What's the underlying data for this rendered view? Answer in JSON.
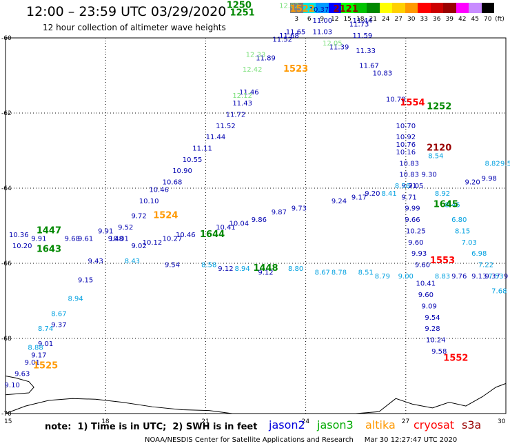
{
  "title": "12:00 – 23:59 UTC 03/29/2020",
  "subtitle": "12 hour collection of altimeter wave heights",
  "scale": {
    "unit": "(ft)",
    "bins": [
      {
        "label": "3",
        "color": "#808080"
      },
      {
        "label": "6",
        "color": "#00e5e5"
      },
      {
        "label": "9",
        "color": "#009bff"
      },
      {
        "label": "12",
        "color": "#0000ff"
      },
      {
        "label": "15",
        "color": "#00ff00"
      },
      {
        "label": "18",
        "color": "#00c400"
      },
      {
        "label": "21",
        "color": "#008800"
      },
      {
        "label": "24",
        "color": "#ffff00"
      },
      {
        "label": "27",
        "color": "#ffd000"
      },
      {
        "label": "30",
        "color": "#ff9900"
      },
      {
        "label": "33",
        "color": "#ff0000"
      },
      {
        "label": "36",
        "color": "#cc0000"
      },
      {
        "label": "39",
        "color": "#990000"
      },
      {
        "label": "42",
        "color": "#ff00ff"
      },
      {
        "label": "45",
        "color": "#c88cff"
      },
      {
        "label": "70",
        "color": "#000000"
      }
    ]
  },
  "axes": {
    "lat_labels": [
      "-60",
      "-62",
      "-64",
      "-66",
      "-68",
      "-70"
    ],
    "lon_labels": [
      "15",
      "18",
      "21",
      "24",
      "27",
      "30"
    ]
  },
  "tracks": [
    {
      "name": "t1",
      "color": "#0000b0",
      "points": [
        [
          15.2,
          -69.3,
          "9.10"
        ],
        [
          15.5,
          -69.0,
          "9.63"
        ],
        [
          15.8,
          -68.7,
          "9.01"
        ],
        [
          16.0,
          -68.5,
          "9.17"
        ],
        [
          16.2,
          -68.2,
          "9.01"
        ],
        [
          16.6,
          -67.7,
          "9.37"
        ],
        [
          17.4,
          -66.5,
          "9.15"
        ],
        [
          17.7,
          -66.0,
          "9.43"
        ],
        [
          18.0,
          -65.2,
          "9.91"
        ],
        [
          18.3,
          -65.4,
          "9.48"
        ],
        [
          18.6,
          -65.1,
          "9.52"
        ],
        [
          19.0,
          -64.8,
          "9.72"
        ],
        [
          19.3,
          -64.4,
          "10.10"
        ],
        [
          19.6,
          -64.1,
          "10.46"
        ],
        [
          20.0,
          -63.9,
          "10.68"
        ],
        [
          20.3,
          -63.6,
          "10.90"
        ],
        [
          20.6,
          -63.3,
          "10.55"
        ],
        [
          20.9,
          -63.0,
          "11.11"
        ],
        [
          21.3,
          -62.7,
          "11.44"
        ],
        [
          21.6,
          -62.4,
          "11.52"
        ],
        [
          21.9,
          -62.1,
          "11.72"
        ],
        [
          22.1,
          -61.8,
          "11.43"
        ],
        [
          22.3,
          -61.5,
          "11.46"
        ],
        [
          22.8,
          -60.6,
          "11.89"
        ],
        [
          23.3,
          -60.1,
          "11.52"
        ],
        [
          23.7,
          -59.9,
          "11.65"
        ],
        [
          23.5,
          -60.0,
          "11.68"
        ]
      ]
    },
    {
      "name": "t2",
      "color": "#0000b0",
      "points": [
        [
          24.4,
          -59.3,
          "10.37"
        ],
        [
          24.5,
          -59.6,
          "11.00"
        ],
        [
          24.5,
          -59.9,
          "11.03"
        ],
        [
          25.0,
          -60.3,
          "11.39"
        ],
        [
          25.6,
          -59.7,
          "11.73"
        ],
        [
          25.7,
          -59.6,
          "11.44"
        ],
        [
          25.7,
          -60.0,
          "11.59"
        ],
        [
          25.8,
          -60.4,
          "11.33"
        ],
        [
          25.9,
          -60.8,
          "11.67"
        ],
        [
          26.3,
          -61.0,
          "10.83"
        ],
        [
          26.7,
          -61.7,
          "10.78"
        ],
        [
          27.0,
          -62.4,
          "10.70"
        ],
        [
          27.0,
          -62.7,
          "10.92"
        ],
        [
          27.0,
          -62.9,
          "10.76"
        ],
        [
          27.0,
          -63.1,
          "10.16"
        ],
        [
          27.1,
          -63.4,
          "10.83"
        ],
        [
          27.1,
          -63.7,
          "10.83"
        ],
        [
          27.1,
          -64.0,
          "9.71"
        ],
        [
          27.1,
          -64.3,
          "9.71"
        ],
        [
          27.2,
          -64.6,
          "9.99"
        ],
        [
          27.2,
          -64.9,
          "9.66"
        ],
        [
          27.3,
          -65.2,
          "10.25"
        ],
        [
          27.3,
          -65.5,
          "9.60"
        ],
        [
          27.4,
          -65.8,
          "9.93"
        ],
        [
          27.5,
          -66.1,
          "9.60"
        ],
        [
          27.6,
          -66.6,
          "10.41"
        ],
        [
          27.6,
          -66.9,
          "9.60"
        ],
        [
          27.7,
          -67.2,
          "9.09"
        ],
        [
          27.8,
          -67.5,
          "9.54"
        ],
        [
          27.8,
          -67.8,
          "9.28"
        ],
        [
          27.9,
          -68.1,
          "10.24"
        ],
        [
          28.0,
          -68.4,
          "9.58"
        ]
      ]
    },
    {
      "name": "t3",
      "color": "#0000b0",
      "points": [
        [
          15.4,
          -65.3,
          "10.36"
        ],
        [
          15.5,
          -65.6,
          "10.20"
        ],
        [
          16.0,
          -65.4,
          "9.91"
        ],
        [
          17.0,
          -65.4,
          "9.68"
        ],
        [
          17.4,
          -65.4,
          "9.61"
        ],
        [
          18.4,
          -65.4,
          "10.01"
        ],
        [
          19.0,
          -65.6,
          "9.02"
        ],
        [
          19.4,
          -65.5,
          "10.12"
        ],
        [
          20.0,
          -65.4,
          "10.27"
        ],
        [
          20.4,
          -65.3,
          "10.46"
        ],
        [
          21.6,
          -65.1,
          "10.41"
        ],
        [
          22.0,
          -65.0,
          "10.04"
        ],
        [
          22.6,
          -64.9,
          "9.86"
        ],
        [
          23.2,
          -64.7,
          "9.87"
        ],
        [
          23.8,
          -64.6,
          "9.73"
        ],
        [
          25.0,
          -64.4,
          "9.24"
        ],
        [
          25.6,
          -64.3,
          "9.17"
        ],
        [
          26.0,
          -64.2,
          "9.20"
        ],
        [
          27.3,
          -64.0,
          "9.05"
        ],
        [
          27.7,
          -63.7,
          "9.30"
        ],
        [
          29.0,
          -63.9,
          "9.20"
        ],
        [
          29.5,
          -63.8,
          "9.98"
        ]
      ]
    },
    {
      "name": "t4",
      "color": "#0000b0",
      "points": [
        [
          20.0,
          -66.1,
          "9.54"
        ],
        [
          21.6,
          -66.2,
          "9.12"
        ],
        [
          22.8,
          -66.3,
          "9.12"
        ],
        [
          28.6,
          -66.4,
          "9.76"
        ],
        [
          29.2,
          -66.4,
          "9.13"
        ],
        [
          29.6,
          -66.4,
          "9.37"
        ],
        [
          30.0,
          -66.4,
          "9"
        ]
      ]
    },
    {
      "name": "t5",
      "color": "#00a0e0",
      "points": [
        [
          17.1,
          -67.0,
          "8.94"
        ],
        [
          16.6,
          -67.4,
          "8.67"
        ],
        [
          16.2,
          -67.8,
          "8.74"
        ],
        [
          15.9,
          -68.3,
          "8.88"
        ],
        [
          18.8,
          -66.0,
          "8.43"
        ],
        [
          21.1,
          -66.1,
          "8.58"
        ],
        [
          22.1,
          -66.2,
          "8.94"
        ],
        [
          23.7,
          -66.2,
          "8.80"
        ],
        [
          24.5,
          -66.3,
          "8.67"
        ],
        [
          25.0,
          -66.3,
          "8.78"
        ],
        [
          25.8,
          -66.3,
          "8.51"
        ],
        [
          26.3,
          -66.4,
          "8.79"
        ],
        [
          27.0,
          -66.4,
          "9.00"
        ],
        [
          28.1,
          -66.4,
          "8.83"
        ],
        [
          27.9,
          -63.2,
          "8.54"
        ],
        [
          28.1,
          -64.2,
          "8.92"
        ],
        [
          28.4,
          -64.5,
          "8.45"
        ],
        [
          28.6,
          -64.9,
          "6.80"
        ],
        [
          28.7,
          -65.2,
          "8.15"
        ],
        [
          28.9,
          -65.5,
          "7.03"
        ],
        [
          29.2,
          -65.8,
          "6.98"
        ],
        [
          29.4,
          -66.1,
          "7.22"
        ],
        [
          29.7,
          -66.4,
          "7.53"
        ],
        [
          29.8,
          -66.8,
          "7.68"
        ],
        [
          29.6,
          -63.4,
          "8.82"
        ],
        [
          30.0,
          -63.4,
          "9.5"
        ],
        [
          26.5,
          -64.2,
          "8.41"
        ],
        [
          26.9,
          -64.0,
          "8.56"
        ]
      ]
    },
    {
      "name": "t6",
      "color": "#7ce07c",
      "points": [
        [
          23.5,
          -59.2,
          "12.02"
        ],
        [
          24.8,
          -60.2,
          "12.05"
        ],
        [
          22.5,
          -60.5,
          "12.33"
        ],
        [
          22.4,
          -60.9,
          "12.42"
        ],
        [
          22.1,
          -61.6,
          "12.12"
        ]
      ]
    }
  ],
  "passes": [
    {
      "label": "1522",
      "color": "#ff9900",
      "lon": 23.9,
      "lat": -59.3
    },
    {
      "label": "1523",
      "color": "#ff9900",
      "lon": 23.7,
      "lat": -60.9
    },
    {
      "label": "1524",
      "color": "#ff9900",
      "lon": 19.8,
      "lat": -64.8
    },
    {
      "label": "1525",
      "color": "#ff9900",
      "lon": 16.2,
      "lat": -68.8
    },
    {
      "label": "2121",
      "color": "#990000",
      "lon": 25.2,
      "lat": -59.3
    },
    {
      "label": "2120",
      "color": "#990000",
      "lon": 28.0,
      "lat": -63.0
    },
    {
      "label": "1554",
      "color": "#ff0000",
      "lon": 27.2,
      "lat": -61.8
    },
    {
      "label": "1553",
      "color": "#ff0000",
      "lon": 28.1,
      "lat": -66.0
    },
    {
      "label": "1552",
      "color": "#ff0000",
      "lon": 28.5,
      "lat": -68.6
    },
    {
      "label": "1252",
      "color": "#008800",
      "lon": 28.0,
      "lat": -61.9
    },
    {
      "label": "1645",
      "color": "#008800",
      "lon": 28.2,
      "lat": -64.5
    },
    {
      "label": "1644",
      "color": "#008800",
      "lon": 21.2,
      "lat": -65.3
    },
    {
      "label": "1643",
      "color": "#008800",
      "lon": 16.3,
      "lat": -65.7
    },
    {
      "label": "1447",
      "color": "#008800",
      "lon": 16.3,
      "lat": -65.2
    },
    {
      "label": "1448",
      "color": "#008800",
      "lon": 22.8,
      "lat": -66.2
    },
    {
      "label": "1251",
      "color": "#008800",
      "lon": 22.1,
      "lat": -59.4
    },
    {
      "label": "1250",
      "color": "#008800",
      "lon": 22.0,
      "lat": -59.2
    }
  ],
  "footer": {
    "note": "note:  1) Time is in UTC;  2) SWH is in feet",
    "legend": [
      {
        "label": "jason2",
        "color": "#0000dd"
      },
      {
        "label": "jason3",
        "color": "#00aa00"
      },
      {
        "label": "altika",
        "color": "#ff9900"
      },
      {
        "label": "cryosat",
        "color": "#ff0000"
      },
      {
        "label": "s3a",
        "color": "#990000"
      }
    ],
    "credit": "NOAA/NESDIS Center for Satellite Applications and Research     Mar 30 12:27:47 UTC 2020"
  }
}
